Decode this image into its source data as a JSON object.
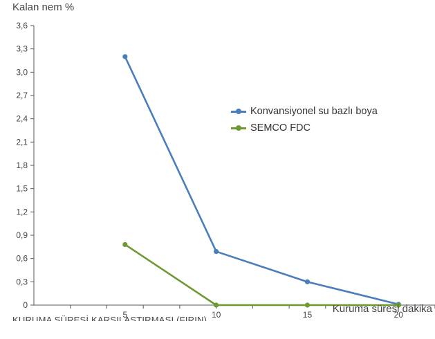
{
  "chart_data": {
    "type": "line",
    "ylabel": "Kalan nem %",
    "xlabel": "Kuruma süresi dakika",
    "caption": "KURUMA SÜRESİ KARŞILAŞTIRMASI (FIRIN)",
    "x": [
      5,
      10,
      15,
      20
    ],
    "xlim": [
      0,
      22
    ],
    "ylim": [
      0,
      3.6
    ],
    "xticks": [
      "5",
      "10",
      "15",
      "20"
    ],
    "yticks": [
      "0",
      "0,3",
      "0,6",
      "0,9",
      "1,2",
      "1,5",
      "1,8",
      "2,1",
      "2,4",
      "2,7",
      "3,0",
      "3,3",
      "3,6"
    ],
    "series": [
      {
        "name": "Konvansiyonel su bazlı boya",
        "color": "#4a7ebb",
        "values": [
          3.2,
          0.69,
          0.3,
          0.01
        ]
      },
      {
        "name": "SEMCO FDC",
        "color": "#6e9a34",
        "values": [
          0.78,
          0.0,
          0.0,
          0.0
        ]
      }
    ],
    "grid": false,
    "legend": "right"
  }
}
